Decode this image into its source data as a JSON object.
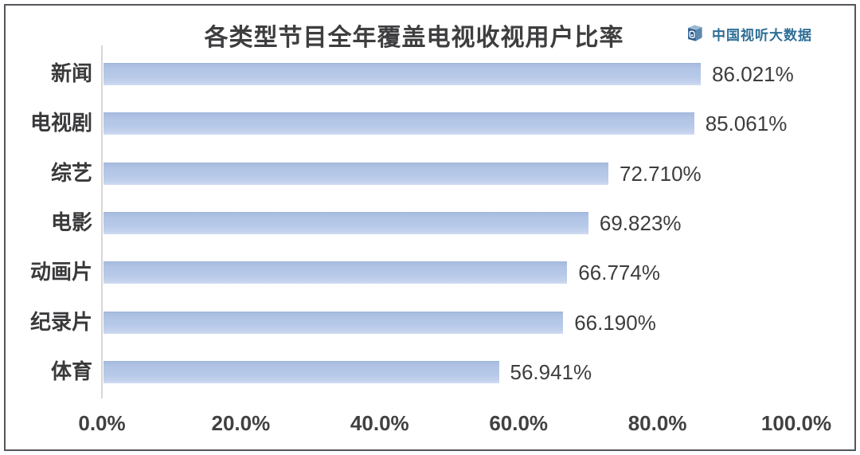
{
  "header": {
    "title": "各类型节目全年覆盖电视收视用户比率",
    "brand": {
      "name": "中国视听大数据",
      "icon": "cube-tv-logo-icon",
      "text_color": "#2e6e96",
      "icon_colors": {
        "front": "#2c5d8f",
        "top": "#9db8d2",
        "side": "#5c88ad",
        "screen": "#ffffff"
      }
    }
  },
  "chart_data": {
    "type": "bar",
    "orientation": "horizontal",
    "title": "各类型节目全年覆盖电视收视用户比率",
    "categories": [
      "新闻",
      "电视剧",
      "综艺",
      "电影",
      "动画片",
      "纪录片",
      "体育"
    ],
    "values": [
      86.021,
      85.061,
      72.71,
      69.823,
      66.774,
      66.19,
      56.941
    ],
    "value_labels": [
      "86.021%",
      "85.061%",
      "72.710%",
      "69.823%",
      "66.774%",
      "66.190%",
      "56.941%"
    ],
    "x_ticks": [
      {
        "value": 0,
        "label": "0.0%"
      },
      {
        "value": 20,
        "label": "20.0%"
      },
      {
        "value": 40,
        "label": "40.0%"
      },
      {
        "value": 60,
        "label": "60.0%"
      },
      {
        "value": 80,
        "label": "80.0%"
      },
      {
        "value": 100,
        "label": "100.0%"
      }
    ],
    "xlabel": "",
    "ylabel": "",
    "xlim": [
      0,
      100
    ],
    "grid": false,
    "legend": "none",
    "bar_color": "#b5c7e7",
    "axis_line_color": "#d7d7d7",
    "label_color": "#3d3d3f"
  }
}
